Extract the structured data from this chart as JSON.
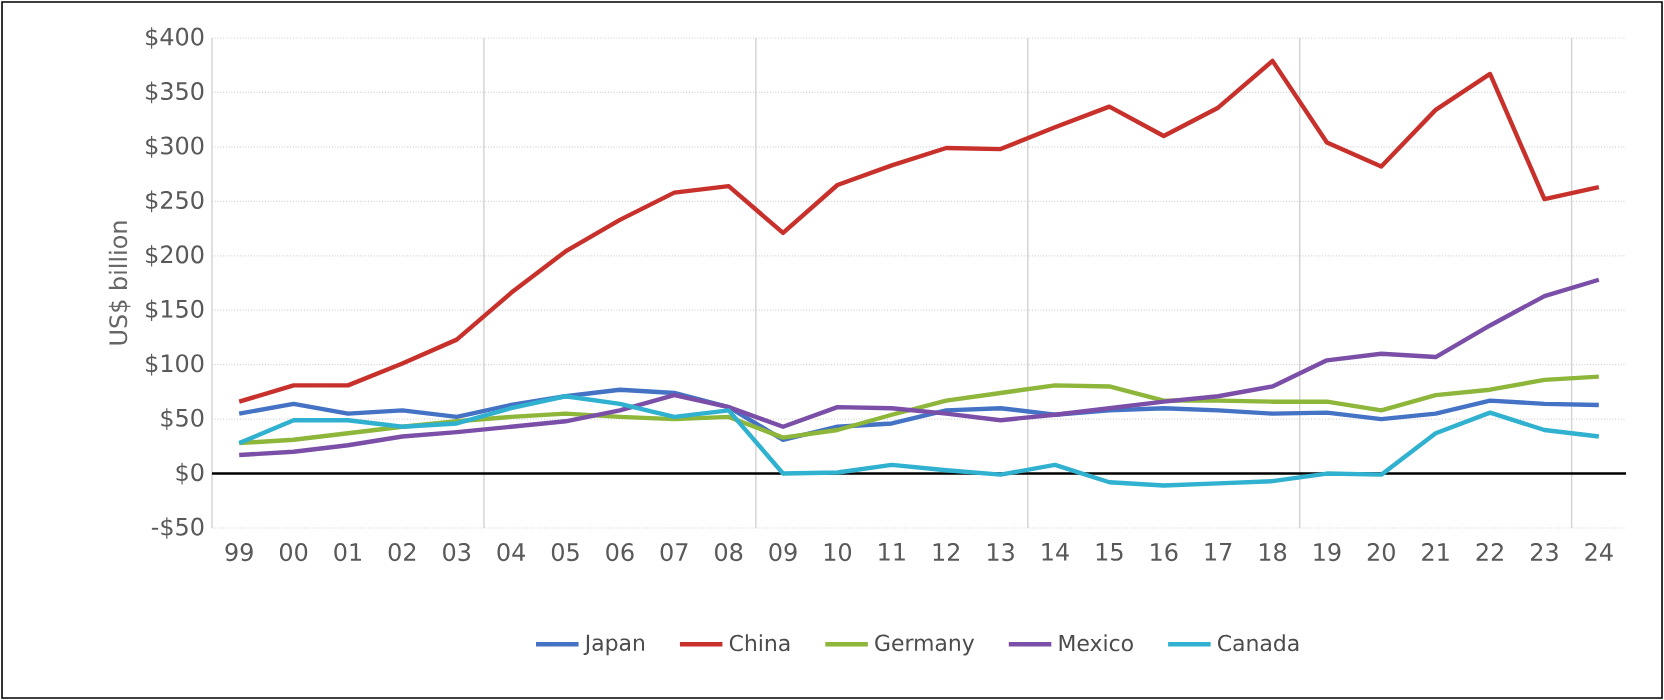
{
  "chart_data": {
    "type": "line",
    "ylabel": "US$ billion",
    "categories": [
      "99",
      "00",
      "01",
      "02",
      "03",
      "04",
      "05",
      "06",
      "07",
      "08",
      "09",
      "10",
      "11",
      "12",
      "13",
      "14",
      "15",
      "16",
      "17",
      "18",
      "19",
      "20",
      "21",
      "22",
      "23",
      "24"
    ],
    "series": [
      {
        "name": "Japan",
        "color": "#4472c4",
        "values": [
          55,
          64,
          55,
          58,
          52,
          63,
          71,
          77,
          74,
          61,
          31,
          43,
          46,
          58,
          60,
          54,
          58,
          60,
          58,
          55,
          56,
          50,
          55,
          67,
          64,
          63
        ]
      },
      {
        "name": "China",
        "color": "#c8312b",
        "values": [
          66,
          81,
          81,
          101,
          123,
          166,
          204,
          233,
          258,
          264,
          221,
          265,
          283,
          299,
          298,
          318,
          337,
          310,
          336,
          379,
          304,
          282,
          334,
          367,
          252,
          263
        ]
      },
      {
        "name": "Germany",
        "color": "#8db63a",
        "values": [
          28,
          31,
          37,
          43,
          48,
          52,
          55,
          52,
          50,
          52,
          33,
          40,
          54,
          67,
          74,
          81,
          80,
          67,
          67,
          66,
          66,
          58,
          72,
          77,
          86,
          89
        ]
      },
      {
        "name": "Mexico",
        "color": "#7b4fa8",
        "values": [
          17,
          20,
          26,
          34,
          38,
          43,
          48,
          58,
          72,
          61,
          43,
          61,
          60,
          55,
          49,
          54,
          60,
          66,
          71,
          80,
          104,
          110,
          107,
          136,
          163,
          178
        ]
      },
      {
        "name": "Canada",
        "color": "#2fb1cf",
        "values": [
          28,
          49,
          49,
          43,
          46,
          60,
          71,
          64,
          52,
          58,
          0,
          1,
          8,
          3,
          -1,
          8,
          -8,
          -11,
          -9,
          -7,
          0,
          -1,
          37,
          56,
          40,
          34
        ]
      }
    ],
    "ylim": [
      -50,
      400
    ],
    "yticks": [
      {
        "value": -50,
        "label": "-$50"
      },
      {
        "value": 0,
        "label": "$0"
      },
      {
        "value": 50,
        "label": "$50"
      },
      {
        "value": 100,
        "label": "$100"
      },
      {
        "value": 150,
        "label": "$150"
      },
      {
        "value": 200,
        "label": "$200"
      },
      {
        "value": 250,
        "label": "$250"
      },
      {
        "value": 300,
        "label": "$300"
      },
      {
        "value": 350,
        "label": "$350"
      },
      {
        "value": 400,
        "label": "$400"
      }
    ],
    "ref_lines": [
      {
        "axis": "y",
        "value": 0,
        "color": "#000000"
      }
    ],
    "grid": true,
    "legend": "bottom",
    "marker": "none",
    "line_style": "solid"
  }
}
